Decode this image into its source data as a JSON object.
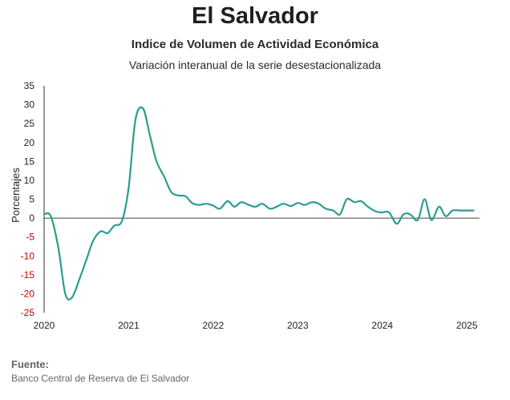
{
  "header": {
    "title": "El Salvador",
    "subtitle": "Indice de Volumen de Actividad Económica",
    "subtitle2": "Variación interanual de la serie desestacionalizada"
  },
  "footer": {
    "source_label": "Fuente:",
    "source_text": "Banco Central de Reserva de El Salvador"
  },
  "colors": {
    "line": "#2a9d8f",
    "negative_tick": "#c00000",
    "zero_line": "#444444"
  },
  "chart_data": {
    "type": "line",
    "ylabel": "Porcentajes",
    "xlabel": "",
    "ylim": [
      -25,
      35
    ],
    "yticks": [
      -25,
      -20,
      -15,
      -10,
      -5,
      0,
      5,
      10,
      15,
      20,
      25,
      30,
      35
    ],
    "xlim": [
      2020,
      2025.15
    ],
    "xticks": [
      2020,
      2021,
      2022,
      2023,
      2024,
      2025
    ],
    "grid": false,
    "series": [
      {
        "x": [
          2020.0,
          2020.08,
          2020.17,
          2020.25,
          2020.33,
          2020.42,
          2020.5,
          2020.58,
          2020.67,
          2020.75,
          2020.83,
          2020.92,
          2021.0,
          2021.08,
          2021.17,
          2021.25,
          2021.33,
          2021.42,
          2021.5,
          2021.58,
          2021.67,
          2021.75,
          2021.83,
          2021.92,
          2022.0,
          2022.08,
          2022.17,
          2022.25,
          2022.33,
          2022.42,
          2022.5,
          2022.58,
          2022.67,
          2022.75,
          2022.83,
          2022.92,
          2023.0,
          2023.08,
          2023.17,
          2023.25,
          2023.33,
          2023.42,
          2023.5,
          2023.58,
          2023.67,
          2023.75,
          2023.83,
          2023.92,
          2024.0,
          2024.08,
          2024.17,
          2024.25,
          2024.33,
          2024.42,
          2024.5,
          2024.58,
          2024.67,
          2024.75,
          2024.83,
          2024.92,
          2025.0,
          2025.08
        ],
        "values": [
          1.0,
          0.5,
          -8.0,
          -20.0,
          -21.0,
          -16.0,
          -11.0,
          -6.0,
          -3.5,
          -4.0,
          -2.0,
          -0.8,
          8.0,
          26.0,
          29.0,
          22.0,
          15.0,
          11.0,
          7.0,
          6.0,
          5.8,
          4.0,
          3.5,
          3.8,
          3.3,
          2.5,
          4.5,
          3.0,
          4.2,
          3.5,
          3.0,
          3.8,
          2.5,
          3.0,
          3.8,
          3.2,
          4.0,
          3.5,
          4.2,
          3.8,
          2.5,
          2.0,
          1.0,
          5.0,
          4.2,
          4.5,
          3.0,
          1.8,
          1.5,
          1.5,
          -1.5,
          1.0,
          1.0,
          -0.5,
          5.0,
          -0.5,
          3.0,
          0.5,
          2.0,
          2.0,
          2.0,
          2.0
        ]
      }
    ]
  }
}
